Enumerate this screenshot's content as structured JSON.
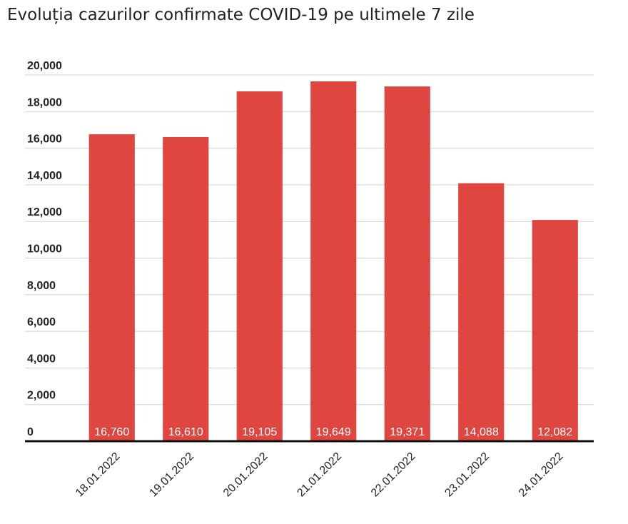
{
  "chart_data": {
    "type": "bar",
    "title": "Evoluția cazurilor confirmate COVID-19 pe ultimele 7 zile",
    "categories": [
      "18.01.2022",
      "19.01.2022",
      "20.01.2022",
      "21.01.2022",
      "22.01.2022",
      "23.01.2022",
      "24.01.2022"
    ],
    "values": [
      16760,
      16610,
      19105,
      19649,
      19371,
      14088,
      12082
    ],
    "value_labels": [
      "16,760",
      "16,610",
      "19,105",
      "19,649",
      "19,371",
      "14,088",
      "12,082"
    ],
    "color": "#e04640",
    "ylim": [
      0,
      20000
    ],
    "yticks": [
      0,
      {
        "value": 2000,
        "label": "2,000"
      },
      {
        "value": 4000,
        "label": "4,000"
      },
      {
        "value": 6000,
        "label": "6,000"
      },
      {
        "value": 8000,
        "label": "8,000"
      },
      {
        "value": 10000,
        "label": "10,000"
      },
      {
        "value": 12000,
        "label": "12,000"
      },
      {
        "value": 14000,
        "label": "14,000"
      },
      {
        "value": 16000,
        "label": "16,000"
      },
      {
        "value": 18000,
        "label": "18,000"
      },
      {
        "value": 20000,
        "label": "20,000"
      }
    ],
    "grid": true
  }
}
